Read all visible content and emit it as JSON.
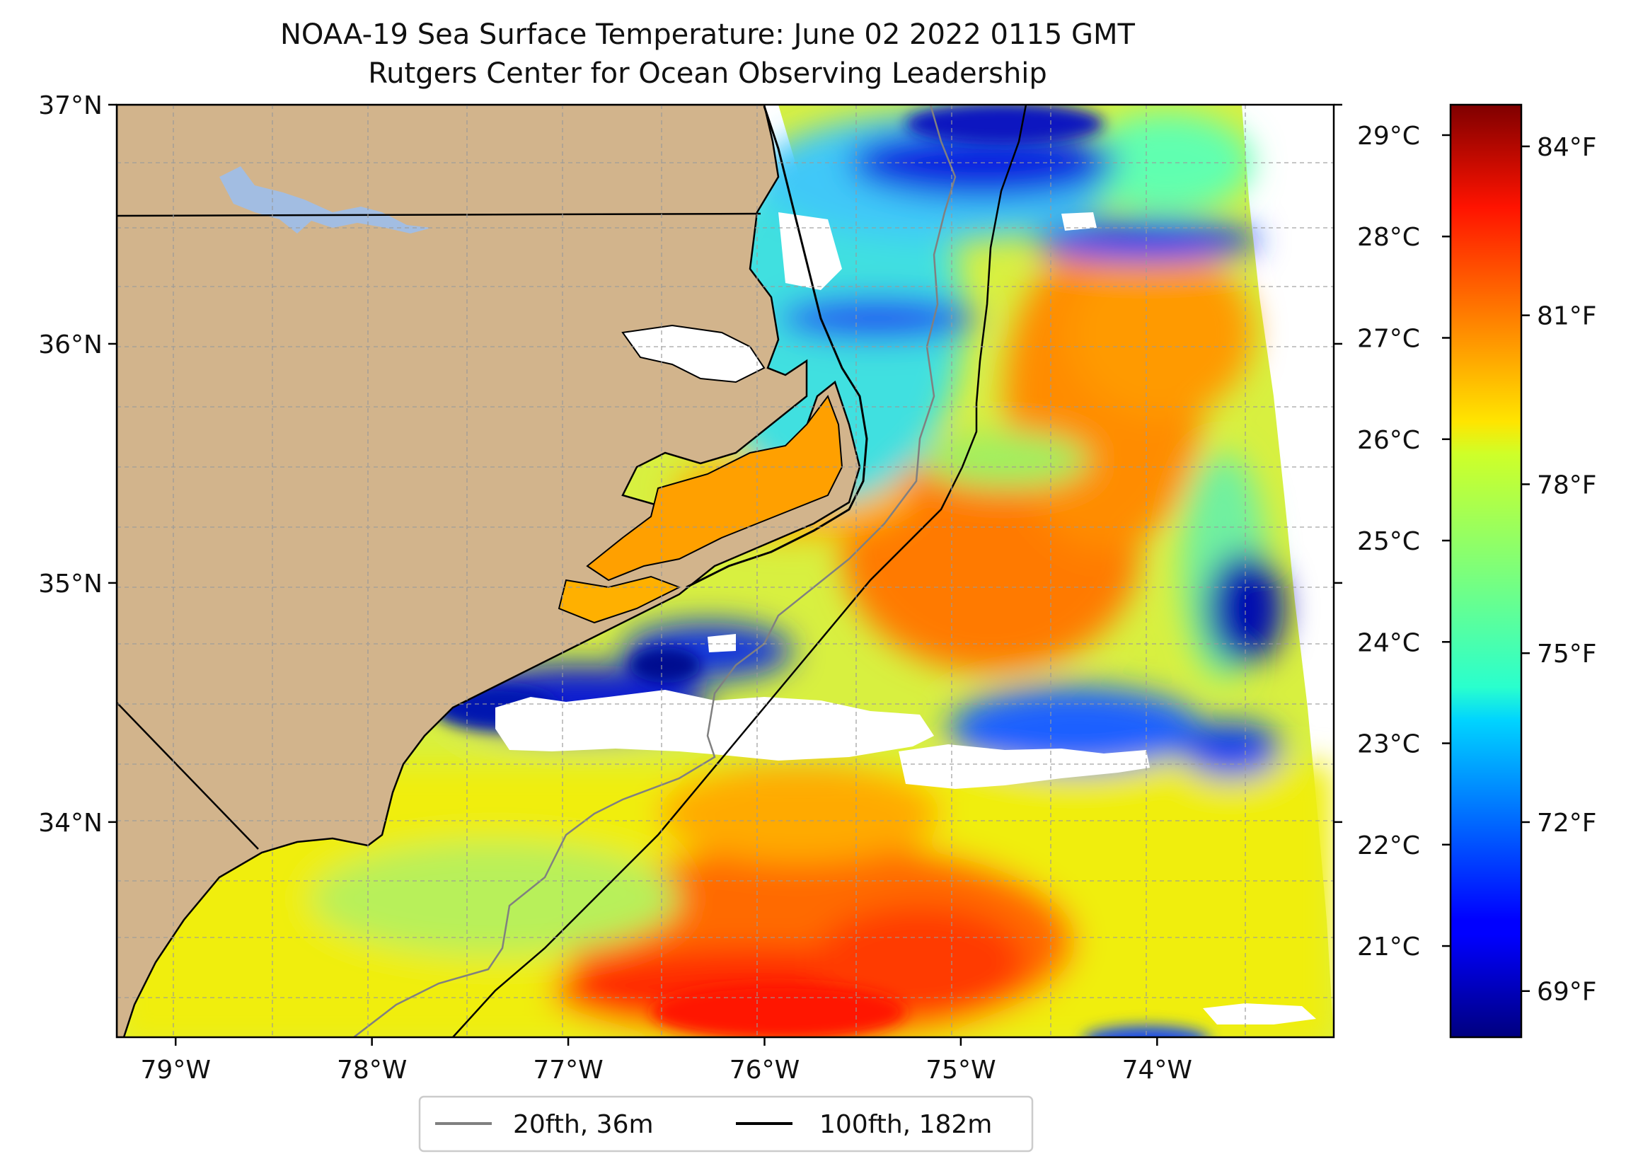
{
  "title_line1": "NOAA-19 Sea Surface Temperature: June 02 2022 0115 GMT",
  "title_line2": "Rutgers Center for Ocean Observing Leadership",
  "map": {
    "lon_range": [
      -79.3,
      -73.1
    ],
    "lat_range": [
      33.1,
      37.0
    ],
    "lat_ticks": [
      {
        "value": 37,
        "label": "37°N"
      },
      {
        "value": 36,
        "label": "36°N"
      },
      {
        "value": 35,
        "label": "35°N"
      },
      {
        "value": 34,
        "label": "34°N"
      }
    ],
    "lon_ticks": [
      {
        "value": -79,
        "label": "79°W"
      },
      {
        "value": -78,
        "label": "78°W"
      },
      {
        "value": -77,
        "label": "77°W"
      },
      {
        "value": -76,
        "label": "76°W"
      },
      {
        "value": -75,
        "label": "75°W"
      },
      {
        "value": -74,
        "label": "74°W"
      }
    ],
    "land_color": "#d2b48c",
    "lake_color": "#a2bde2",
    "grid": true
  },
  "colorbar": {
    "colormap": "jet",
    "celsius_range": [
      20.1,
      29.3
    ],
    "celsius_ticks": [
      {
        "value": 29,
        "label": "29°C"
      },
      {
        "value": 28,
        "label": "28°C"
      },
      {
        "value": 27,
        "label": "27°C"
      },
      {
        "value": 26,
        "label": "26°C"
      },
      {
        "value": 25,
        "label": "25°C"
      },
      {
        "value": 24,
        "label": "24°C"
      },
      {
        "value": 23,
        "label": "23°C"
      },
      {
        "value": 22,
        "label": "22°C"
      },
      {
        "value": 21,
        "label": "21°C"
      }
    ],
    "fahrenheit_ticks": [
      {
        "value": 84,
        "label": "84°F"
      },
      {
        "value": 81,
        "label": "81°F"
      },
      {
        "value": 78,
        "label": "78°F"
      },
      {
        "value": 75,
        "label": "75°F"
      },
      {
        "value": 72,
        "label": "72°F"
      },
      {
        "value": 69,
        "label": "69°F"
      }
    ]
  },
  "legend": {
    "items": [
      {
        "label": "20fth, 36m",
        "color": "#808080"
      },
      {
        "label": "100fth, 182m",
        "color": "#000000"
      }
    ]
  }
}
